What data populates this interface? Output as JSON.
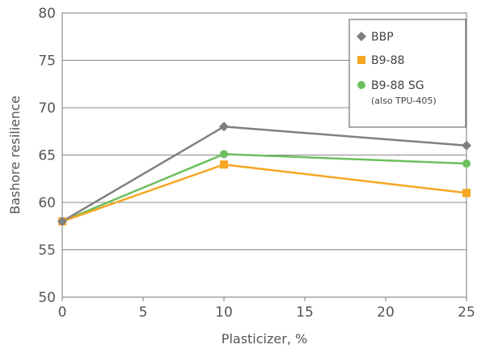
{
  "chart_data": {
    "type": "line",
    "xlabel": "Plasticizer, %",
    "ylabel": "Bashore resilience",
    "xlim": [
      0,
      25
    ],
    "ylim": [
      50,
      80
    ],
    "x_ticks": [
      "0",
      "5",
      "10",
      "15",
      "20",
      "25"
    ],
    "y_ticks": [
      "80",
      "75",
      "70",
      "65",
      "60",
      "55",
      "50"
    ],
    "grid": "horizontal",
    "legend_position": "top-right",
    "x": [
      0,
      10,
      25
    ],
    "series": [
      {
        "name": "BBP",
        "values": [
          58,
          68,
          66
        ],
        "color": "#808080",
        "marker": "diamond"
      },
      {
        "name": "B9-88",
        "values": [
          58,
          64,
          61
        ],
        "color": "#f5a623",
        "marker": "square"
      },
      {
        "name": "B9-88 SG",
        "note": "(also TPU-405)",
        "values": [
          58,
          65.1,
          64.1
        ],
        "color": "#6dbf5f",
        "marker": "circle"
      }
    ]
  }
}
